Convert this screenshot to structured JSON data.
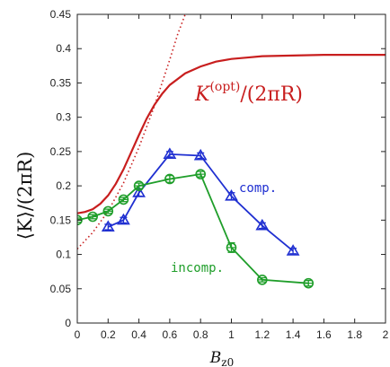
{
  "chart_data": {
    "type": "line",
    "xlabel": "B",
    "xlabel_sub": "z0",
    "ylabel": "⟨K⟩/(2πR)",
    "xlim": [
      0,
      2
    ],
    "ylim": [
      0,
      0.45
    ],
    "x_ticks": [
      "0",
      "0.2",
      "0.4",
      "0.6",
      "0.8",
      "1",
      "1.2",
      "1.4",
      "1.6",
      "1.8",
      "2"
    ],
    "y_ticks": [
      "0",
      "0.05",
      "0.1",
      "0.15",
      "0.2",
      "0.25",
      "0.3",
      "0.35",
      "0.4",
      "0.45"
    ],
    "grid": false,
    "series": [
      {
        "name": "K(opt)/(2πR)",
        "label_main": "K",
        "label_sup": "(opt)",
        "label_rest": "/(2πR)",
        "style": "solid-curve",
        "color": "#c81e1e",
        "x": [
          0,
          0.05,
          0.1,
          0.15,
          0.2,
          0.25,
          0.3,
          0.35,
          0.4,
          0.45,
          0.5,
          0.55,
          0.6,
          0.7,
          0.8,
          0.9,
          1.0,
          1.1,
          1.2,
          1.4,
          1.6,
          1.8,
          2.0
        ],
        "y": [
          0.16,
          0.162,
          0.166,
          0.174,
          0.186,
          0.203,
          0.224,
          0.249,
          0.274,
          0.298,
          0.318,
          0.334,
          0.347,
          0.364,
          0.374,
          0.381,
          0.385,
          0.387,
          0.389,
          0.39,
          0.391,
          0.391,
          0.391
        ]
      },
      {
        "name": "asymptote",
        "style": "dotted-curve",
        "color": "#c81e1e",
        "x": [
          0,
          0.1,
          0.2,
          0.3,
          0.4,
          0.5,
          0.6,
          0.65,
          0.7
        ],
        "y": [
          0.108,
          0.132,
          0.163,
          0.204,
          0.256,
          0.316,
          0.384,
          0.42,
          0.45
        ]
      },
      {
        "name": "comp.",
        "style": "markers-triangle",
        "color": "#1f2fd1",
        "x": [
          0.2,
          0.3,
          0.4,
          0.6,
          0.8,
          1.0,
          1.2,
          1.4
        ],
        "y": [
          0.14,
          0.15,
          0.19,
          0.246,
          0.244,
          0.185,
          0.142,
          0.105
        ],
        "yerr": [
          0.004,
          0.004,
          0.005,
          0.004,
          0.004,
          0.005,
          0.004,
          0.004
        ]
      },
      {
        "name": "incomp.",
        "style": "markers-circle",
        "color": "#1f9e2a",
        "x": [
          0,
          0.1,
          0.2,
          0.3,
          0.4,
          0.6,
          0.8,
          1.0,
          1.2,
          1.5
        ],
        "y": [
          0.15,
          0.155,
          0.163,
          0.18,
          0.2,
          0.21,
          0.217,
          0.11,
          0.063,
          0.058
        ],
        "yerr": [
          0.003,
          0.003,
          0.003,
          0.003,
          0.004,
          0.005,
          0.004,
          0.007,
          0.003,
          0.004
        ]
      }
    ]
  }
}
